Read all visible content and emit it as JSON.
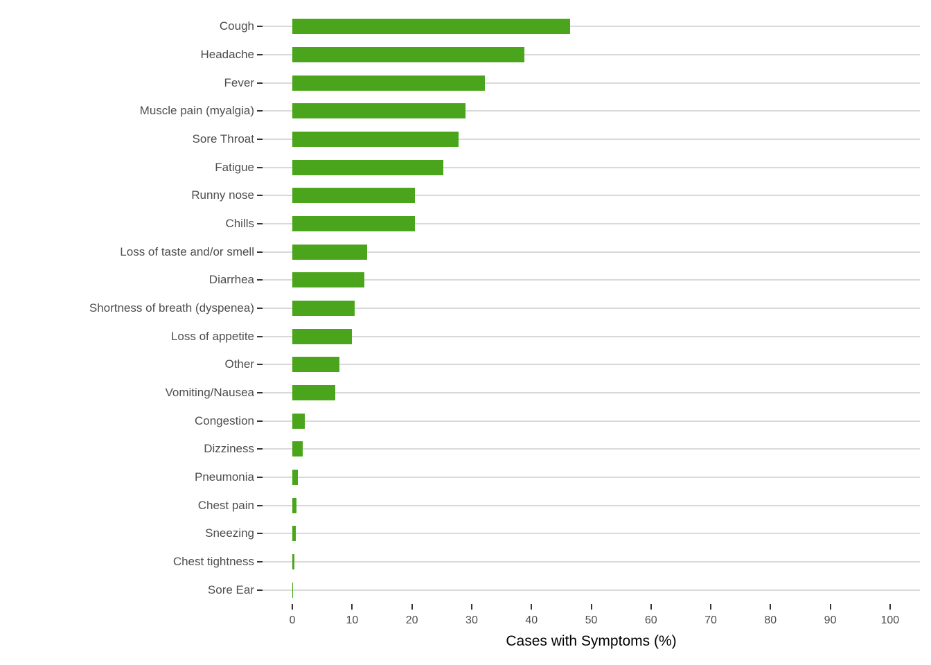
{
  "chart_data": {
    "type": "bar",
    "orientation": "horizontal",
    "title": "",
    "xlabel": "Cases with Symptoms (%)",
    "ylabel": "",
    "categories": [
      "Cough",
      "Headache",
      "Fever",
      "Muscle pain (myalgia)",
      "Sore Throat",
      "Fatigue",
      "Runny nose",
      "Chills",
      "Loss of taste and/or smell",
      "Diarrhea",
      "Shortness of breath (dyspenea)",
      "Loss of appetite",
      "Other",
      "Vomiting/Nausea",
      "Congestion",
      "Dizziness",
      "Pneumonia",
      "Chest pain",
      "Sneezing",
      "Chest tightness",
      "Sore Ear"
    ],
    "values": [
      46.5,
      38.8,
      32.2,
      29.0,
      27.8,
      25.3,
      20.5,
      20.5,
      12.5,
      12.0,
      10.4,
      9.9,
      7.9,
      7.2,
      2.1,
      1.7,
      0.9,
      0.7,
      0.6,
      0.3,
      0.15
    ],
    "x_ticks": [
      0,
      10,
      20,
      30,
      40,
      50,
      60,
      70,
      80,
      90,
      100
    ],
    "x_range_shown": [
      0,
      100
    ],
    "x_range_panel": [
      -5,
      105
    ],
    "grid": "horizontal-only",
    "legend": "none",
    "colors": {
      "bar": "#4ba51c",
      "gridline": "#d9d9d9",
      "tick_mark": "#333333",
      "tick_label": "#4d4d4d",
      "axis_title": "#000000",
      "background": "#ffffff"
    }
  }
}
